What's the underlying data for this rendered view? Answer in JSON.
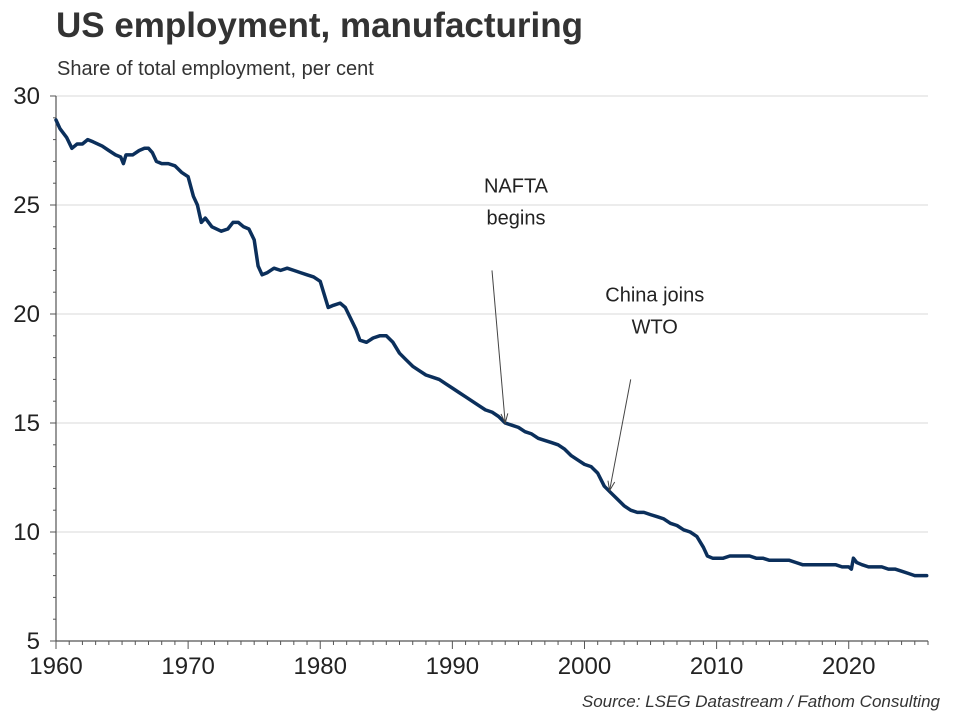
{
  "chart_data": {
    "type": "line",
    "title": "US employment, manufacturing",
    "subtitle": "Share of total employment, per cent",
    "source": "Source: LSEG Datastream / Fathom Consulting",
    "xlabel": "",
    "ylabel": "",
    "xlim": [
      1960,
      2026
    ],
    "ylim": [
      5,
      30
    ],
    "x_ticks": [
      1960,
      1970,
      1980,
      1990,
      2000,
      2010,
      2020
    ],
    "y_ticks": [
      5,
      10,
      15,
      20,
      25,
      30
    ],
    "grid": true,
    "line_color": "#0b2f5b",
    "series": [
      {
        "name": "Manufacturing share of total employment",
        "points": [
          [
            1960.0,
            28.9
          ],
          [
            1960.3,
            28.5
          ],
          [
            1960.8,
            28.1
          ],
          [
            1961.2,
            27.6
          ],
          [
            1961.6,
            27.8
          ],
          [
            1962.0,
            27.8
          ],
          [
            1962.4,
            28.0
          ],
          [
            1962.8,
            27.9
          ],
          [
            1963.5,
            27.7
          ],
          [
            1964.0,
            27.5
          ],
          [
            1964.5,
            27.3
          ],
          [
            1964.9,
            27.2
          ],
          [
            1965.1,
            26.9
          ],
          [
            1965.3,
            27.3
          ],
          [
            1965.8,
            27.3
          ],
          [
            1966.3,
            27.5
          ],
          [
            1966.7,
            27.6
          ],
          [
            1967.0,
            27.6
          ],
          [
            1967.3,
            27.4
          ],
          [
            1967.6,
            27.0
          ],
          [
            1968.0,
            26.9
          ],
          [
            1968.5,
            26.9
          ],
          [
            1969.0,
            26.8
          ],
          [
            1969.5,
            26.5
          ],
          [
            1970.0,
            26.3
          ],
          [
            1970.4,
            25.4
          ],
          [
            1970.7,
            25.0
          ],
          [
            1971.0,
            24.2
          ],
          [
            1971.3,
            24.4
          ],
          [
            1971.8,
            24.0
          ],
          [
            1972.5,
            23.8
          ],
          [
            1973.0,
            23.9
          ],
          [
            1973.4,
            24.2
          ],
          [
            1973.8,
            24.2
          ],
          [
            1974.2,
            24.0
          ],
          [
            1974.6,
            23.9
          ],
          [
            1975.0,
            23.4
          ],
          [
            1975.3,
            22.2
          ],
          [
            1975.6,
            21.8
          ],
          [
            1976.0,
            21.9
          ],
          [
            1976.5,
            22.1
          ],
          [
            1977.0,
            22.0
          ],
          [
            1977.5,
            22.1
          ],
          [
            1978.0,
            22.0
          ],
          [
            1978.5,
            21.9
          ],
          [
            1979.0,
            21.8
          ],
          [
            1979.5,
            21.7
          ],
          [
            1980.0,
            21.5
          ],
          [
            1980.3,
            20.9
          ],
          [
            1980.6,
            20.3
          ],
          [
            1981.0,
            20.4
          ],
          [
            1981.5,
            20.5
          ],
          [
            1981.9,
            20.3
          ],
          [
            1982.3,
            19.8
          ],
          [
            1982.7,
            19.3
          ],
          [
            1983.0,
            18.8
          ],
          [
            1983.5,
            18.7
          ],
          [
            1984.0,
            18.9
          ],
          [
            1984.5,
            19.0
          ],
          [
            1985.0,
            19.0
          ],
          [
            1985.5,
            18.7
          ],
          [
            1986.0,
            18.2
          ],
          [
            1986.5,
            17.9
          ],
          [
            1987.0,
            17.6
          ],
          [
            1987.5,
            17.4
          ],
          [
            1988.0,
            17.2
          ],
          [
            1988.5,
            17.1
          ],
          [
            1989.0,
            17.0
          ],
          [
            1989.5,
            16.8
          ],
          [
            1990.0,
            16.6
          ],
          [
            1990.5,
            16.4
          ],
          [
            1991.0,
            16.2
          ],
          [
            1991.5,
            16.0
          ],
          [
            1992.0,
            15.8
          ],
          [
            1992.5,
            15.6
          ],
          [
            1993.0,
            15.5
          ],
          [
            1993.5,
            15.3
          ],
          [
            1994.0,
            15.0
          ],
          [
            1994.5,
            14.9
          ],
          [
            1995.0,
            14.8
          ],
          [
            1995.5,
            14.6
          ],
          [
            1996.0,
            14.5
          ],
          [
            1996.5,
            14.3
          ],
          [
            1997.0,
            14.2
          ],
          [
            1997.5,
            14.1
          ],
          [
            1998.0,
            14.0
          ],
          [
            1998.5,
            13.8
          ],
          [
            1999.0,
            13.5
          ],
          [
            1999.5,
            13.3
          ],
          [
            2000.0,
            13.1
          ],
          [
            2000.5,
            13.0
          ],
          [
            2001.0,
            12.7
          ],
          [
            2001.5,
            12.1
          ],
          [
            2002.0,
            11.8
          ],
          [
            2002.5,
            11.5
          ],
          [
            2003.0,
            11.2
          ],
          [
            2003.5,
            11.0
          ],
          [
            2004.0,
            10.9
          ],
          [
            2004.5,
            10.9
          ],
          [
            2005.0,
            10.8
          ],
          [
            2005.5,
            10.7
          ],
          [
            2006.0,
            10.6
          ],
          [
            2006.5,
            10.4
          ],
          [
            2007.0,
            10.3
          ],
          [
            2007.5,
            10.1
          ],
          [
            2008.0,
            10.0
          ],
          [
            2008.5,
            9.8
          ],
          [
            2009.0,
            9.3
          ],
          [
            2009.3,
            8.9
          ],
          [
            2009.7,
            8.8
          ],
          [
            2010.0,
            8.8
          ],
          [
            2010.5,
            8.8
          ],
          [
            2011.0,
            8.9
          ],
          [
            2011.5,
            8.9
          ],
          [
            2012.0,
            8.9
          ],
          [
            2012.5,
            8.9
          ],
          [
            2013.0,
            8.8
          ],
          [
            2013.5,
            8.8
          ],
          [
            2014.0,
            8.7
          ],
          [
            2014.5,
            8.7
          ],
          [
            2015.0,
            8.7
          ],
          [
            2015.5,
            8.7
          ],
          [
            2016.0,
            8.6
          ],
          [
            2016.5,
            8.5
          ],
          [
            2017.0,
            8.5
          ],
          [
            2017.5,
            8.5
          ],
          [
            2018.0,
            8.5
          ],
          [
            2018.5,
            8.5
          ],
          [
            2019.0,
            8.5
          ],
          [
            2019.5,
            8.4
          ],
          [
            2020.0,
            8.4
          ],
          [
            2020.2,
            8.3
          ],
          [
            2020.35,
            8.8
          ],
          [
            2020.6,
            8.6
          ],
          [
            2021.0,
            8.5
          ],
          [
            2021.5,
            8.4
          ],
          [
            2022.0,
            8.4
          ],
          [
            2022.5,
            8.4
          ],
          [
            2023.0,
            8.3
          ],
          [
            2023.5,
            8.3
          ],
          [
            2024.0,
            8.2
          ],
          [
            2024.5,
            8.1
          ],
          [
            2025.0,
            8.0
          ],
          [
            2025.5,
            8.0
          ],
          [
            2025.9,
            8.0
          ]
        ]
      }
    ],
    "annotations": [
      {
        "lines": [
          "NAFTA",
          "begins"
        ],
        "x": 1994.0,
        "y": 15.0,
        "label_x": 1993.0,
        "label_y": 22.0
      },
      {
        "lines": [
          "China joins",
          "WTO"
        ],
        "x": 2001.9,
        "y": 11.9,
        "label_x": 2003.5,
        "label_y": 17.0
      }
    ]
  }
}
